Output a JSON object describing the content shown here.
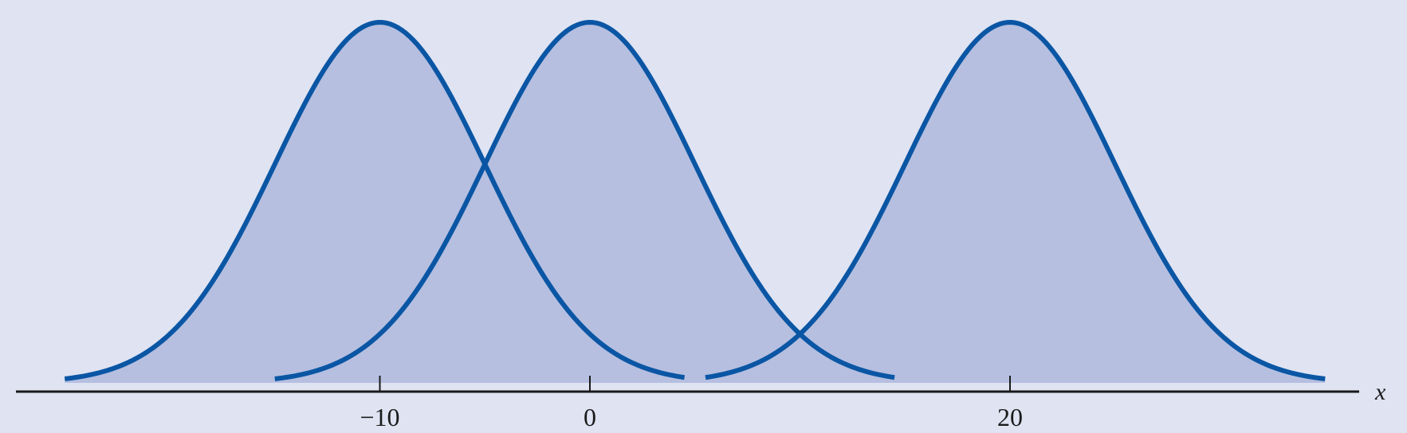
{
  "chart_data": {
    "type": "area",
    "title": "",
    "xlabel": "x",
    "ylabel": "",
    "xlim": [
      -22,
      36
    ],
    "x_ticks": [
      {
        "value": -10,
        "label": "−10"
      },
      {
        "value": 0,
        "label": "0"
      },
      {
        "value": 20,
        "label": "20"
      }
    ],
    "grid": false,
    "legend": "none",
    "distribution": "normal",
    "curves": [
      {
        "mean": -10,
        "sd": 5,
        "x_range": [
          -25,
          4.5
        ]
      },
      {
        "mean": 0,
        "sd": 5,
        "x_range": [
          -15,
          14.5
        ]
      },
      {
        "mean": 20,
        "sd": 5,
        "x_range": [
          5.5,
          35
        ]
      }
    ],
    "colors": {
      "background": "#dfe3f2",
      "fill": "#b6bfe0",
      "stroke": "#0a56a4",
      "axis": "#1a1a1a"
    }
  }
}
